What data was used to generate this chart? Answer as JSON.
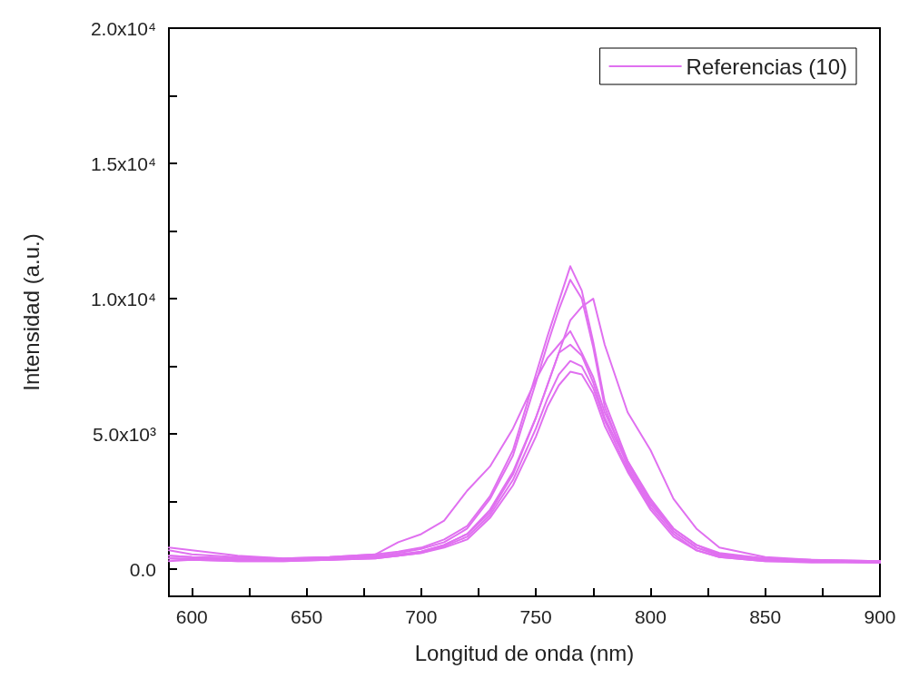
{
  "chart_data": {
    "type": "line",
    "xlabel": "Longitud de onda (nm)",
    "ylabel": "Intensidad (a.u.)",
    "x": [
      590,
      600,
      620,
      640,
      660,
      680,
      690,
      700,
      710,
      720,
      730,
      740,
      750,
      755,
      760,
      765,
      770,
      775,
      780,
      790,
      800,
      810,
      820,
      830,
      850,
      870,
      900
    ],
    "series": [
      {
        "name": "Referencias (10)",
        "color": "#e070f0",
        "values": [
          700,
          550,
          450,
          400,
          450,
          550,
          650,
          800,
          1100,
          1600,
          2700,
          4400,
          7200,
          8600,
          9900,
          11200,
          10300,
          8400,
          6200,
          4000,
          2500,
          1500,
          900,
          600,
          400,
          350,
          300
        ]
      },
      {
        "color": "#e070f0",
        "values": [
          500,
          450,
          400,
          350,
          400,
          500,
          600,
          750,
          1000,
          1500,
          2600,
          4200,
          6900,
          8300,
          9600,
          10700,
          10000,
          8200,
          6000,
          3800,
          2400,
          1400,
          800,
          550,
          350,
          300,
          250
        ]
      },
      {
        "color": "#e070f0",
        "values": [
          400,
          400,
          350,
          350,
          400,
          450,
          500,
          650,
          900,
          1300,
          2100,
          3500,
          5600,
          6800,
          8000,
          9200,
          9700,
          10000,
          8300,
          5800,
          4400,
          2600,
          1500,
          800,
          450,
          350,
          300
        ]
      },
      {
        "color": "#e070f0",
        "values": [
          800,
          700,
          500,
          400,
          450,
          550,
          1000,
          1300,
          1800,
          2900,
          3800,
          5200,
          7000,
          7800,
          8300,
          8800,
          8000,
          7100,
          5800,
          4000,
          2600,
          1500,
          900,
          550,
          400,
          300,
          300
        ]
      },
      {
        "color": "#e070f0",
        "values": [
          300,
          350,
          300,
          300,
          350,
          450,
          550,
          650,
          900,
          1300,
          2200,
          3600,
          5600,
          6800,
          8000,
          8300,
          7900,
          6900,
          5600,
          3900,
          2500,
          1400,
          800,
          500,
          350,
          300,
          250
        ]
      },
      {
        "color": "#e070f0",
        "values": [
          400,
          350,
          300,
          300,
          350,
          400,
          500,
          600,
          850,
          1200,
          2000,
          3300,
          5200,
          6300,
          7200,
          7700,
          7500,
          6700,
          5500,
          3700,
          2300,
          1300,
          700,
          450,
          300,
          250,
          250
        ]
      },
      {
        "color": "#e070f0",
        "values": [
          500,
          450,
          400,
          350,
          350,
          400,
          500,
          600,
          800,
          1100,
          1900,
          3100,
          4900,
          6000,
          6800,
          7300,
          7200,
          6500,
          5300,
          3600,
          2200,
          1200,
          700,
          450,
          300,
          300,
          250
        ]
      }
    ],
    "xlim": [
      590,
      900
    ],
    "xticks": [
      600,
      {
        "value": 625,
        "label": null
      },
      650,
      {
        "value": 675,
        "label": null
      },
      700,
      {
        "value": 725,
        "label": null
      },
      750,
      {
        "value": 775,
        "label": null
      },
      800,
      {
        "value": 825,
        "label": null
      },
      850,
      {
        "value": 875,
        "label": null
      },
      900
    ],
    "ylim": [
      -1000,
      20000
    ],
    "yticks": [
      {
        "value": 0,
        "label": "0.0"
      },
      {
        "value": 2500,
        "label": null
      },
      {
        "value": 5000,
        "label": "5.0x10³"
      },
      {
        "value": 7500,
        "label": null
      },
      {
        "value": 10000,
        "label": "1.0x10⁴"
      },
      {
        "value": 12500,
        "label": null
      },
      {
        "value": 15000,
        "label": "1.5x10⁴"
      },
      {
        "value": 17500,
        "label": null
      },
      {
        "value": 20000,
        "label": "2.0x10⁴"
      }
    ],
    "legend": "top right",
    "grid": false,
    "marker": "none",
    "line_style": "solid"
  }
}
